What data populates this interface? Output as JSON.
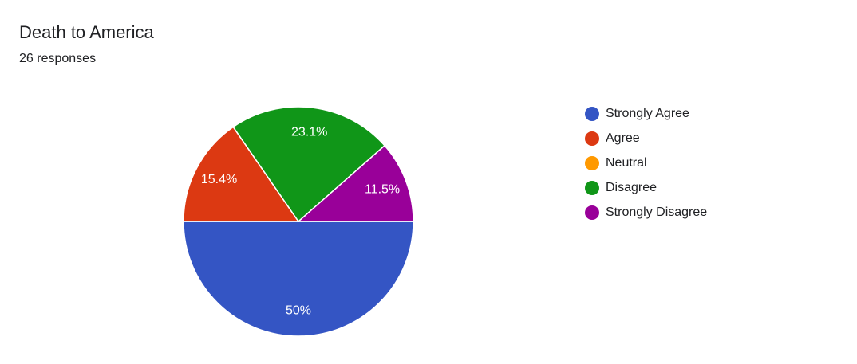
{
  "chart_data": {
    "type": "pie",
    "title": "Death to America",
    "subtitle": "26 responses",
    "categories": [
      "Strongly Agree",
      "Agree",
      "Neutral",
      "Disagree",
      "Strongly Disagree"
    ],
    "values": [
      50,
      15.4,
      0,
      23.1,
      11.5
    ],
    "value_labels": [
      "50%",
      "15.4%",
      null,
      "23.1%",
      "11.5%"
    ],
    "colors": [
      "#3455c4",
      "#dc3912",
      "#ff9900",
      "#109618",
      "#990099"
    ],
    "legend": "right"
  }
}
